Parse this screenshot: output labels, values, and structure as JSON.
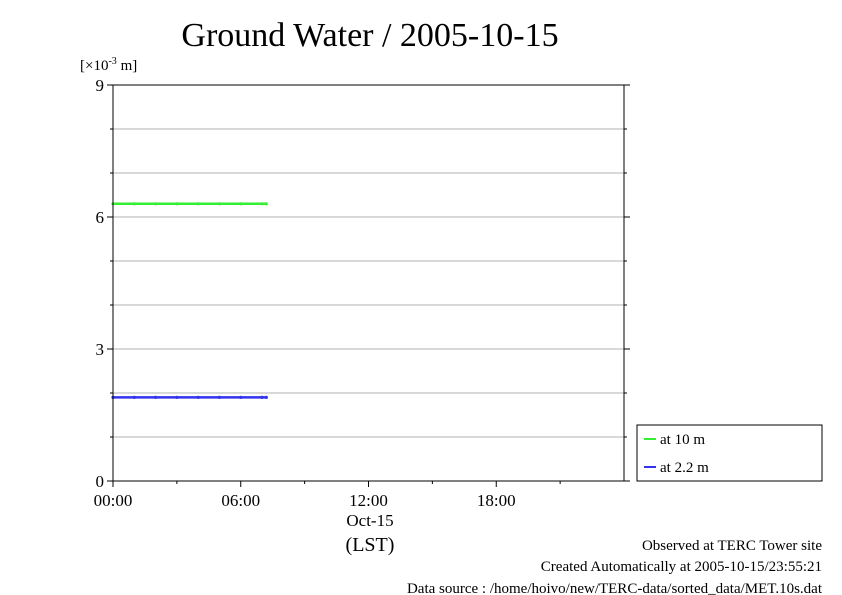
{
  "chart_data": {
    "type": "line",
    "title": "Ground Water / 2005-10-15",
    "ylabel_unit": "[×10",
    "ylabel_exp": "-3",
    "ylabel_suffix": " m]",
    "ylim": [
      0,
      9
    ],
    "yticks": [
      0,
      3,
      6,
      9
    ],
    "ytick_labels": [
      "0",
      "3",
      "6",
      "9"
    ],
    "xlim_hours": [
      0,
      24
    ],
    "xticks_hours": [
      0,
      6,
      12,
      18
    ],
    "xtick_labels": [
      "00:00",
      "06:00",
      "12:00",
      "18:00"
    ],
    "date_label": "Oct-15",
    "xlabel": "(LST)",
    "grid": true,
    "legend_placement": "bottom-right outside",
    "series": [
      {
        "name": "at 10 m",
        "color": "#33ee33",
        "x_hours": [
          0.0,
          1.0,
          2.0,
          3.0,
          4.0,
          5.0,
          6.0,
          7.0,
          7.2
        ],
        "values": [
          6.3,
          6.3,
          6.3,
          6.3,
          6.3,
          6.3,
          6.3,
          6.3,
          6.3
        ]
      },
      {
        "name": "at 2.2 m",
        "color": "#3333ee",
        "x_hours": [
          0.0,
          1.0,
          2.0,
          3.0,
          4.0,
          5.0,
          6.0,
          7.0,
          7.2
        ],
        "values": [
          1.9,
          1.9,
          1.9,
          1.9,
          1.9,
          1.9,
          1.9,
          1.9,
          1.9
        ]
      }
    ]
  },
  "footer": {
    "line1": "Observed at TERC Tower site",
    "line2": "Created Automatically at 2005-10-15/23:55:21",
    "line3": "Data source : /home/hoivo/new/TERC-data/sorted_data/MET.10s.dat"
  }
}
